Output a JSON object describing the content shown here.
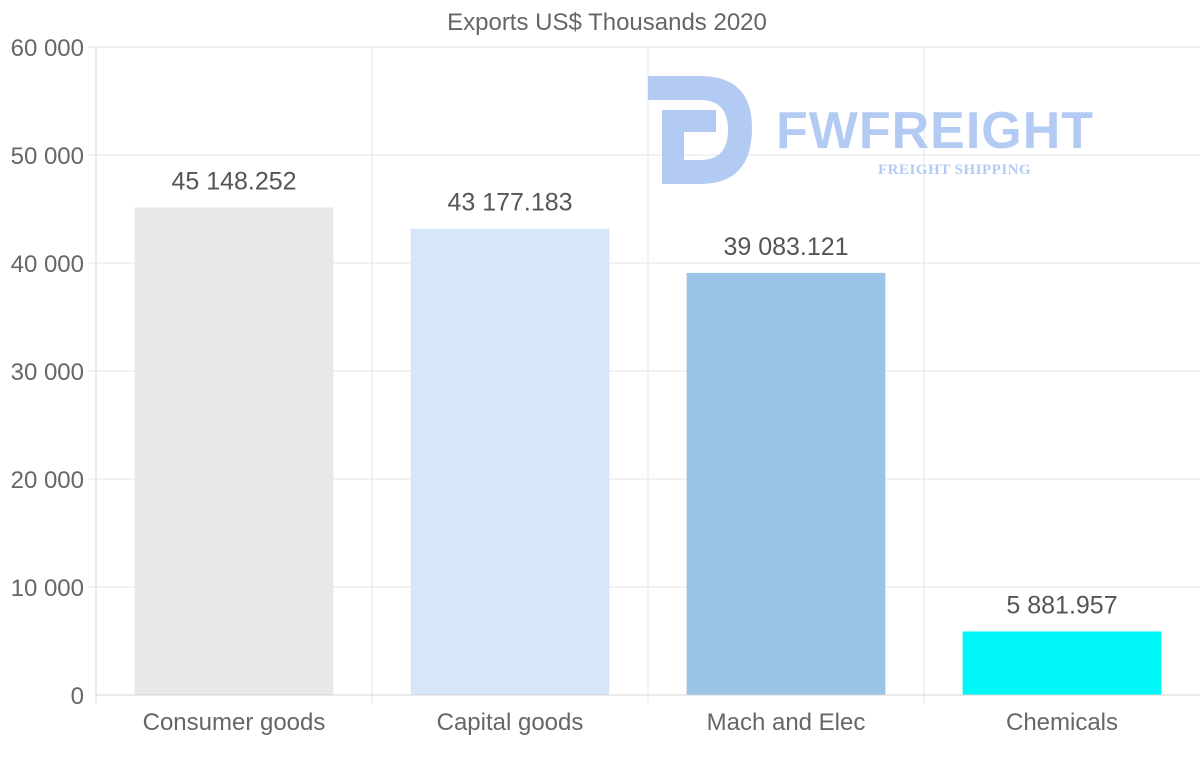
{
  "chart_data": {
    "type": "bar",
    "title": "Exports US$ Thousands 2020",
    "categories": [
      "Consumer goods",
      "Capital goods",
      "Mach and Elec",
      "Chemicals"
    ],
    "values": [
      45148.252,
      43177.183,
      39083.121,
      5881.957
    ],
    "value_labels": [
      "45 148.252",
      "43 177.183",
      "39 083.121",
      "5 881.957"
    ],
    "bar_colors": [
      "#e8e8e8",
      "#d8e7f8",
      "#9bc3e6",
      "#00f7f7"
    ],
    "ylim": [
      0,
      60000
    ],
    "yticks": [
      0,
      10000,
      20000,
      30000,
      40000,
      50000,
      60000
    ],
    "ytick_labels": [
      "0",
      "10 000",
      "20 000",
      "30 000",
      "40 000",
      "50 000",
      "60 000"
    ],
    "xlabel": "",
    "ylabel": "",
    "grid": true,
    "legend": "none"
  },
  "watermark": {
    "brand": "FWFREIGHT",
    "tagline": "FREIGHT SHIPPING",
    "color": "#b3cbf3"
  }
}
